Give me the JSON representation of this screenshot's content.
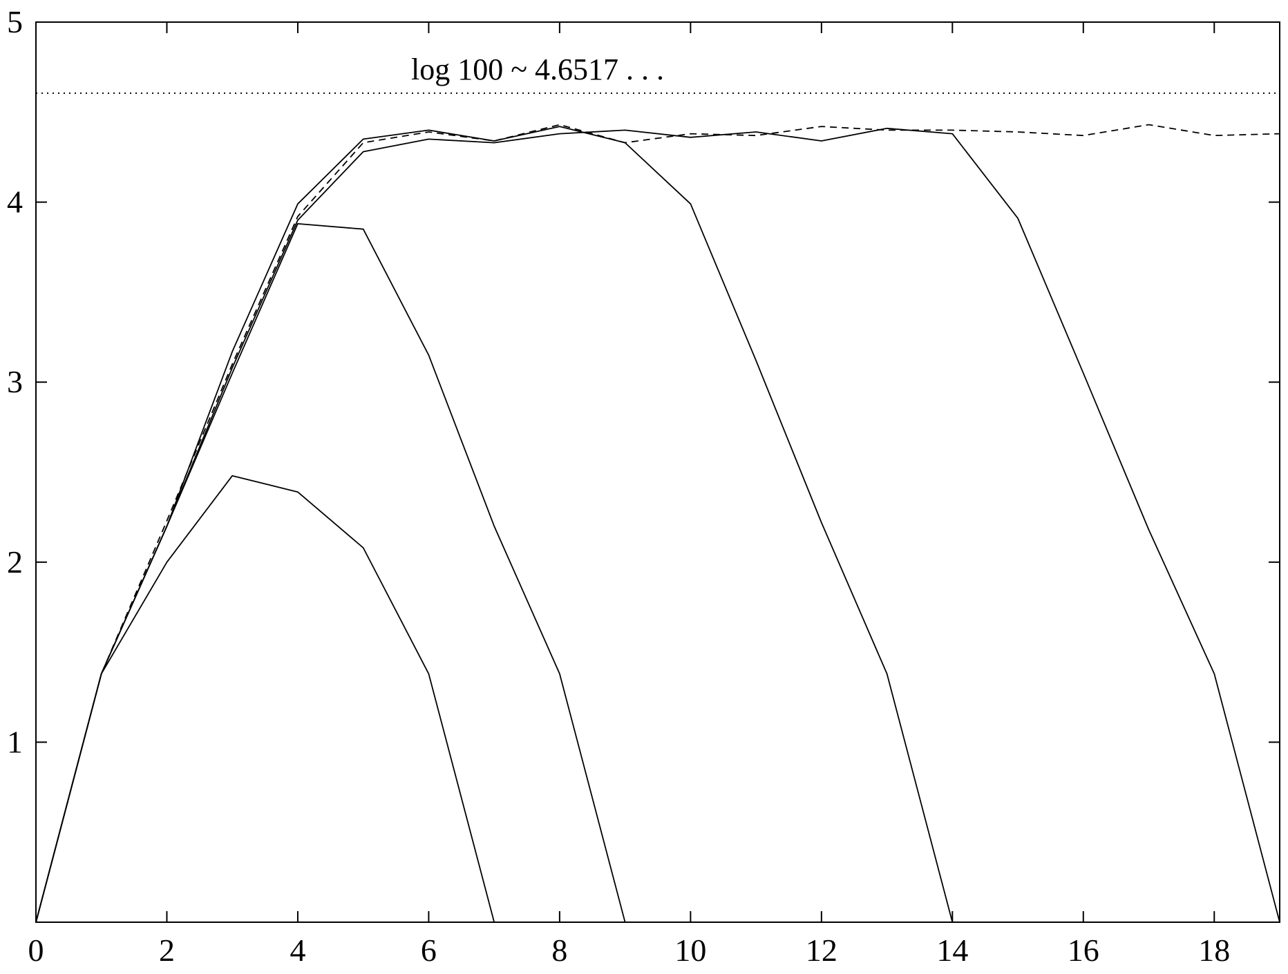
{
  "chart_data": {
    "type": "line",
    "title": "",
    "xlabel": "",
    "ylabel": "",
    "xlim": [
      0,
      19
    ],
    "ylim": [
      0,
      5
    ],
    "x_ticks": [
      0,
      2,
      4,
      6,
      8,
      10,
      12,
      14,
      16,
      18
    ],
    "y_ticks": [
      1,
      2,
      3,
      4,
      5
    ],
    "grid": false,
    "annotation": {
      "text": "log 100 ~ 4.6517 . . .",
      "y": 4.605
    },
    "series": [
      {
        "style": "solid",
        "x": [
          0,
          1,
          2,
          3,
          4,
          5,
          6,
          7
        ],
        "y": [
          0,
          1.38,
          2.0,
          2.48,
          2.39,
          2.08,
          1.38,
          0
        ]
      },
      {
        "style": "solid",
        "x": [
          0,
          1,
          2,
          3,
          4,
          5,
          6,
          7,
          8,
          9
        ],
        "y": [
          0,
          1.38,
          2.2,
          3.05,
          3.88,
          3.85,
          3.15,
          2.2,
          1.38,
          0
        ]
      },
      {
        "style": "solid",
        "x": [
          0,
          1,
          2,
          3,
          4,
          5,
          6,
          7,
          8,
          9,
          10,
          11,
          12,
          13,
          14
        ],
        "y": [
          0,
          1.38,
          2.2,
          3.17,
          3.99,
          4.35,
          4.4,
          4.34,
          4.42,
          4.33,
          3.99,
          3.12,
          2.22,
          1.38,
          0
        ]
      },
      {
        "style": "solid",
        "x": [
          0,
          1,
          2,
          3,
          4,
          5,
          6,
          7,
          8,
          9,
          10,
          11,
          12,
          13,
          14,
          15,
          16,
          17,
          18,
          19
        ],
        "y": [
          0,
          1.38,
          2.2,
          3.08,
          3.9,
          4.28,
          4.35,
          4.33,
          4.38,
          4.4,
          4.36,
          4.39,
          4.34,
          4.41,
          4.38,
          3.91,
          3.05,
          2.18,
          1.38,
          0
        ]
      },
      {
        "style": "dashed",
        "x": [
          0,
          1,
          2,
          3,
          4,
          5,
          6,
          7,
          8,
          9,
          10,
          11,
          12,
          13,
          14,
          15,
          16,
          17,
          18,
          19
        ],
        "y": [
          0,
          1.38,
          2.23,
          3.1,
          3.92,
          4.33,
          4.39,
          4.34,
          4.43,
          4.33,
          4.38,
          4.37,
          4.42,
          4.4,
          4.4,
          4.39,
          4.37,
          4.43,
          4.37,
          4.38
        ]
      }
    ]
  }
}
